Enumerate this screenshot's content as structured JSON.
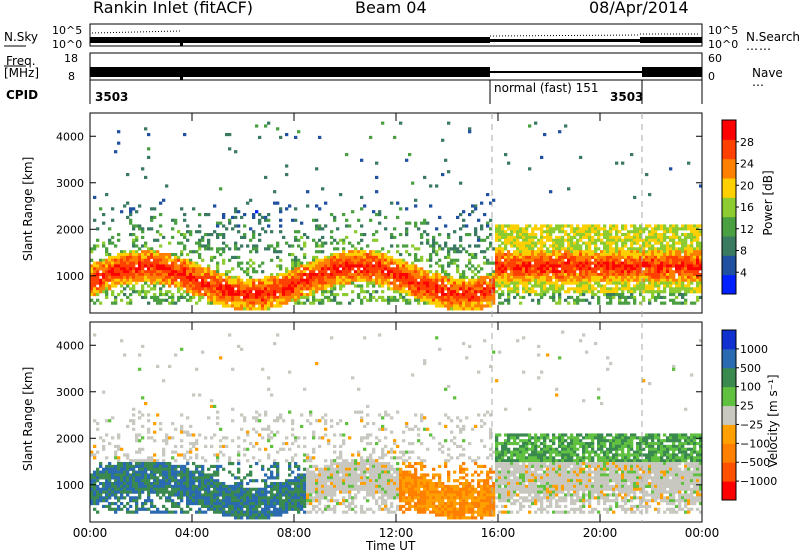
{
  "header": {
    "station": "Rankin Inlet (fitACF)",
    "beam": "Beam 04",
    "date": "08/Apr/2014"
  },
  "top_panels": {
    "nsky_label": "N.Sky",
    "nsky_ticks": [
      "10^5",
      "10^0"
    ],
    "nsearch_label": "N.Search",
    "nsearch_ticks": [
      "10^5",
      "10^0"
    ],
    "freq_label_line1": "Freq.",
    "freq_label_line2": "[MHz]",
    "freq_ticks": [
      "18",
      "8"
    ],
    "nave_label": "Nave",
    "nave_ticks": [
      "60",
      "0"
    ],
    "cpid_label": "CPID",
    "cpid_segments": [
      "3503",
      "normal (fast) 151",
      "3503"
    ]
  },
  "colors": {
    "power": [
      "#0020ff",
      "#2050a0",
      "#3a7a60",
      "#4aa040",
      "#8ccc30",
      "#ffd000",
      "#ff8000",
      "#ff4000",
      "#ff0000"
    ],
    "velocity": [
      "#ff0000",
      "#ff5000",
      "#ff8000",
      "#ffa000",
      "#c8c8c0",
      "#60c040",
      "#3a8a50",
      "#2a6ab0",
      "#1030d0"
    ]
  },
  "chart_data": [
    {
      "type": "heatmap",
      "title": "Power",
      "ylabel": "Slant Range [km]",
      "xlabel": "Time UT",
      "x_ticks": [
        "00:00",
        "04:00",
        "08:00",
        "12:00",
        "16:00",
        "20:00",
        "00:00"
      ],
      "y_ticks": [
        "1000",
        "2000",
        "3000",
        "4000"
      ],
      "ylim": [
        200,
        4500
      ],
      "colorbar_label": "Power [dB]",
      "colorbar_ticks": [
        "4",
        "8",
        "12",
        "16",
        "20",
        "24",
        "28"
      ],
      "colorbar_range": [
        0,
        30
      ]
    },
    {
      "type": "heatmap",
      "title": "Velocity",
      "ylabel": "Slant Range [km]",
      "xlabel": "Time UT",
      "x_ticks": [
        "00:00",
        "04:00",
        "08:00",
        "12:00",
        "16:00",
        "20:00",
        "00:00"
      ],
      "y_ticks": [
        "1000",
        "2000",
        "3000",
        "4000"
      ],
      "ylim": [
        200,
        4500
      ],
      "colorbar_label": "Velocity [m s⁻¹]",
      "colorbar_ticks": [
        "1000",
        "500",
        "100",
        "25",
        "−25",
        "−100",
        "−500",
        "−1000"
      ]
    }
  ]
}
